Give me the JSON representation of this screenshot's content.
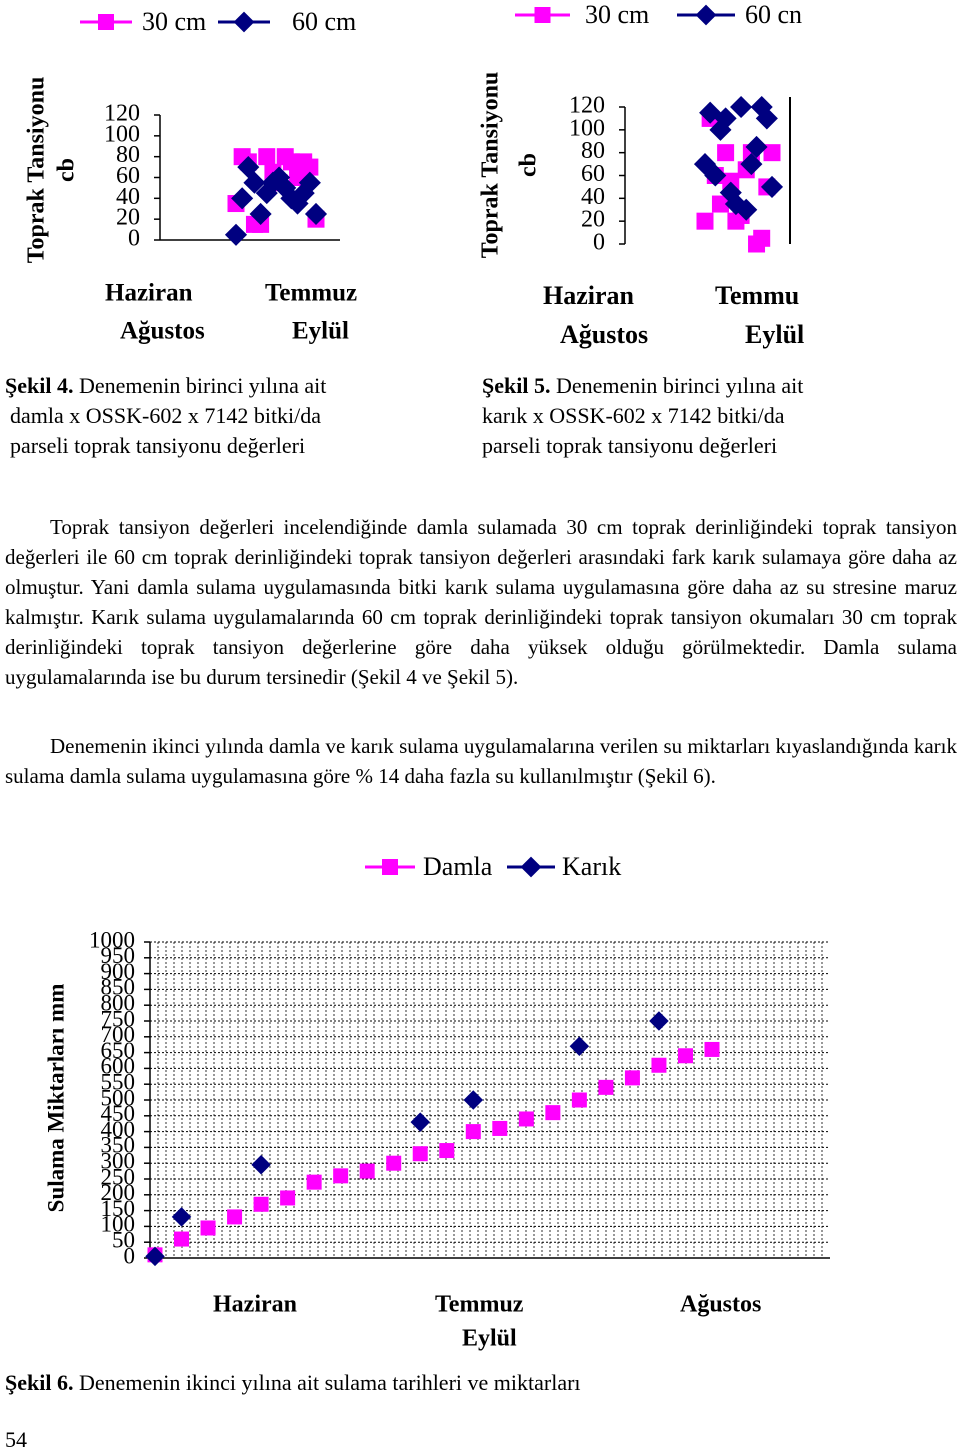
{
  "chart_data": [
    {
      "type": "scatter",
      "series": [
        {
          "name": "30 cm",
          "color": "#ff00ff",
          "marker": "square",
          "values": [
            35,
            80,
            75,
            15,
            15,
            80,
            65,
            55,
            80,
            75,
            60,
            75,
            70,
            20
          ]
        },
        {
          "name": "60 cm",
          "color": "#000080",
          "marker": "diamond",
          "values": [
            5,
            40,
            70,
            55,
            25,
            45,
            55,
            60,
            50,
            40,
            35,
            45,
            55,
            25
          ]
        }
      ],
      "ylim": [
        0,
        120
      ],
      "yticks": [
        0,
        20,
        40,
        60,
        80,
        100,
        120
      ],
      "ylabel": [
        "Toprak Tansiyonu",
        "cb"
      ],
      "x_labels": [
        "Haziran",
        "Temmuz",
        "Ağustos",
        "Eylül"
      ],
      "caption": {
        "label": "Şekil 4.",
        "lines": [
          "Denemenin birinci yılına ait",
          "damla x OSSK-602 x 7142 bitki/da",
          "parseli toprak tansiyonu değerleri"
        ]
      }
    },
    {
      "type": "scatter",
      "series": [
        {
          "name": "30 cm",
          "color": "#ff00ff",
          "marker": "square",
          "values": [
            20,
            110,
            60,
            35,
            80,
            55,
            20,
            25,
            65,
            80,
            0,
            5,
            50,
            80
          ]
        },
        {
          "name": "60 cn",
          "color": "#000080",
          "marker": "diamond",
          "values": [
            70,
            115,
            60,
            100,
            110,
            45,
            35,
            120,
            30,
            70,
            85,
            120,
            110,
            50
          ]
        }
      ],
      "ylim": [
        0,
        120
      ],
      "yticks": [
        0,
        20,
        40,
        60,
        80,
        100,
        120
      ],
      "ylabel": [
        "Toprak Tansiyonu",
        "cb"
      ],
      "x_labels": [
        "Haziran",
        "Temmu",
        "Ağustos",
        "Eylül"
      ],
      "caption": {
        "label": "Şekil 5.",
        "lines": [
          "Denemenin birinci yılına ait",
          "karık x OSSK-602 x 7142 bitki/da",
          "parseli toprak tansiyonu değerleri"
        ]
      }
    },
    {
      "type": "scatter",
      "grid": true,
      "series": [
        {
          "name": "Damla",
          "color": "#ff00ff",
          "marker": "square",
          "values": [
            10,
            60,
            95,
            130,
            170,
            190,
            240,
            260,
            275,
            300,
            330,
            340,
            400,
            410,
            440,
            460,
            500,
            540,
            570,
            610,
            640,
            660
          ]
        },
        {
          "name": "Karık",
          "color": "#000080",
          "marker": "diamond",
          "values": [
            5,
            130,
            null,
            null,
            295,
            null,
            null,
            null,
            null,
            null,
            430,
            null,
            500,
            null,
            null,
            null,
            670,
            null,
            null,
            750,
            null,
            null
          ]
        }
      ],
      "ylim": [
        0,
        1000
      ],
      "yticks": [
        0,
        50,
        100,
        150,
        200,
        250,
        300,
        350,
        400,
        450,
        500,
        550,
        600,
        650,
        700,
        750,
        800,
        850,
        900,
        950,
        1000
      ],
      "ylabel": [
        "Sulama   Miktarları  mm"
      ],
      "x_labels": [
        "Haziran",
        "Temmuz",
        "Ağustos",
        "Eylül"
      ],
      "caption": {
        "label": "Şekil 6.",
        "lines": [
          "Denemenin ikinci yılına ait sulama tarihleri ve miktarları"
        ]
      }
    }
  ],
  "body": {
    "paragraphs": [
      "Toprak tansiyon değerleri incelendiğinde damla sulamada 30 cm toprak derinliğindeki toprak tansiyon değerleri ile 60 cm toprak derinliğindeki toprak tansiyon değerleri arasındaki fark karık sulamaya göre daha az olmuştur. Yani damla sulama uygulamasında bitki karık sulama uygulamasına göre daha az su stresine maruz kalmıştır. Karık sulama uygulamalarında 60 cm toprak derinliğindeki toprak tansiyon okumaları 30 cm toprak derinliğindeki toprak tansiyon değerlerine göre daha yüksek olduğu görülmektedir. Damla sulama uygulamalarında ise bu durum tersinedir (Şekil 4 ve Şekil 5).",
      "Denemenin ikinci yılında damla ve karık sulama uygulamalarına verilen su miktarları kıyaslandığında karık sulama damla sulama uygulamasına göre % 14 daha fazla su kullanılmıştır (Şekil 6)."
    ]
  },
  "page_number": "54"
}
